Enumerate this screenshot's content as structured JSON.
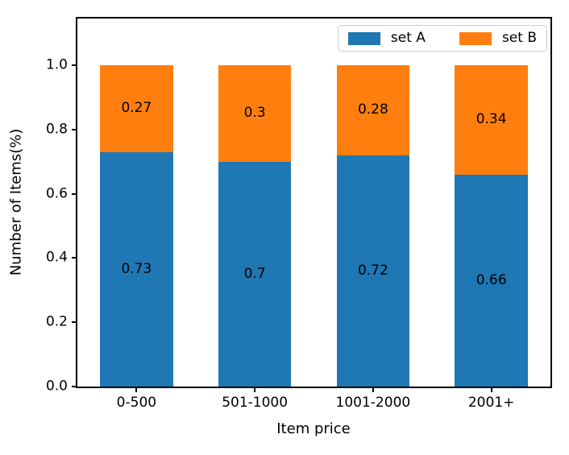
{
  "figure": {
    "background": "#ffffff"
  },
  "chart_data": {
    "type": "bar",
    "stacked": true,
    "title": "",
    "xlabel": "Item price",
    "ylabel": "Number of Items(%)",
    "categories": [
      "0-500",
      "501-1000",
      "1001-2000",
      "2001+"
    ],
    "series": [
      {
        "name": "set A",
        "color": "#1f77b4",
        "values": [
          0.73,
          0.7,
          0.72,
          0.66
        ],
        "labels": [
          "0.73",
          "0.7",
          "0.72",
          "0.66"
        ]
      },
      {
        "name": "set B",
        "color": "#ff7f0e",
        "values": [
          0.27,
          0.3,
          0.28,
          0.34
        ],
        "labels": [
          "0.27",
          "0.3",
          "0.28",
          "0.34"
        ]
      }
    ],
    "bar_value_labels": true,
    "ylim": [
      0,
      1.145
    ],
    "yticks": [
      "0.0",
      "0.2",
      "0.4",
      "0.6",
      "0.8",
      "1.0"
    ],
    "grid": false,
    "legend": {
      "position": "upper right",
      "entries": [
        "set A",
        "set B"
      ]
    },
    "axis_color": "#000000",
    "legend_border_color": "#cccccc"
  }
}
